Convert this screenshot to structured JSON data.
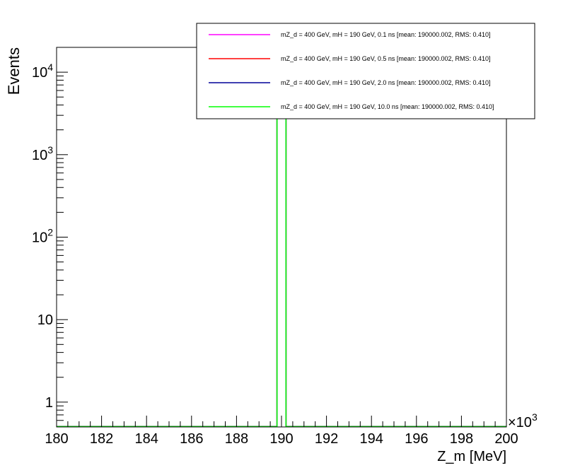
{
  "chart_data": {
    "type": "line",
    "xlabel": "Z_m [MeV]",
    "ylabel": "Events",
    "x_multiplier_label": "×10",
    "x_multiplier_exp": "3",
    "xlim": [
      180000,
      200000
    ],
    "x_ticks": [
      {
        "value": 180000,
        "label": "180"
      },
      {
        "value": 182000,
        "label": "182"
      },
      {
        "value": 184000,
        "label": "184"
      },
      {
        "value": 186000,
        "label": "186"
      },
      {
        "value": 188000,
        "label": "188"
      },
      {
        "value": 190000,
        "label": "190"
      },
      {
        "value": 192000,
        "label": "192"
      },
      {
        "value": 194000,
        "label": "194"
      },
      {
        "value": 196000,
        "label": "196"
      },
      {
        "value": 198000,
        "label": "198"
      },
      {
        "value": 200000,
        "label": "200"
      }
    ],
    "y_scale": "log",
    "ylim": [
      0.5,
      20000
    ],
    "y_ticks": [
      {
        "value": 1,
        "base": "1",
        "exp": ""
      },
      {
        "value": 10,
        "base": "10",
        "exp": ""
      },
      {
        "value": 100,
        "base": "10",
        "exp": "2"
      },
      {
        "value": 1000,
        "base": "10",
        "exp": "3"
      },
      {
        "value": 10000,
        "base": "10",
        "exp": "4"
      }
    ],
    "legend_position": "top-right",
    "series": [
      {
        "name": "mZ_d = 400 GeV, mH = 190 GeV, 0.1 ns [mean: 190000.002, RMS: 0.410]",
        "color": "#ff00ff",
        "x": [
          189800,
          190200
        ],
        "y": [
          20000,
          20000
        ]
      },
      {
        "name": "mZ_d = 400 GeV, mH = 190 GeV, 0.5 ns [mean: 190000.002, RMS: 0.410]",
        "color": "#ff0000",
        "x": [
          189800,
          190200
        ],
        "y": [
          20000,
          20000
        ]
      },
      {
        "name": "mZ_d = 400 GeV, mH = 190 GeV, 2.0 ns [mean: 190000.002, RMS: 0.410]",
        "color": "#000099",
        "x": [
          189800,
          190200
        ],
        "y": [
          20000,
          20000
        ]
      },
      {
        "name": "mZ_d = 400 GeV, mH = 190 GeV, 10.0 ns [mean: 190000.002, RMS: 0.410]",
        "color": "#00ff00",
        "x": [
          189800,
          190200
        ],
        "y": [
          20000,
          20000
        ]
      }
    ]
  }
}
